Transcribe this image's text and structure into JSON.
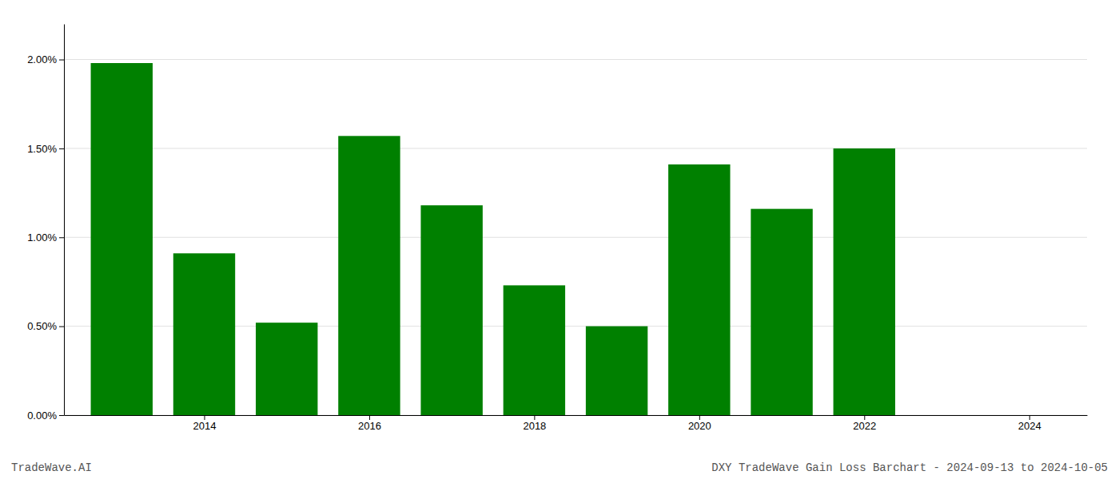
{
  "chart_data": {
    "type": "bar",
    "title": "DXY TradeWave Gain Loss Barchart - 2024-09-13 to 2024-10-05",
    "annotations": [
      "TradeWave.AI"
    ],
    "x": [
      2013,
      2014,
      2015,
      2016,
      2017,
      2018,
      2019,
      2020,
      2021,
      2022,
      2023
    ],
    "values": [
      0.0198,
      0.0091,
      0.0052,
      0.0157,
      0.0118,
      0.0073,
      0.005,
      0.0141,
      0.0116,
      0.015,
      0.0
    ],
    "color": "#008000",
    "xlim": [
      2012.3,
      2024.7
    ],
    "xticks": [
      2014,
      2016,
      2018,
      2020,
      2022,
      2024
    ],
    "ylim": [
      0.0,
      0.022
    ],
    "yticks": [
      {
        "value": 0.0,
        "label": "0.00%"
      },
      {
        "value": 0.005,
        "label": "0.50%"
      },
      {
        "value": 0.01,
        "label": "1.00%"
      },
      {
        "value": 0.015,
        "label": "1.50%"
      },
      {
        "value": 0.02,
        "label": "2.00%"
      }
    ],
    "grid": true
  }
}
